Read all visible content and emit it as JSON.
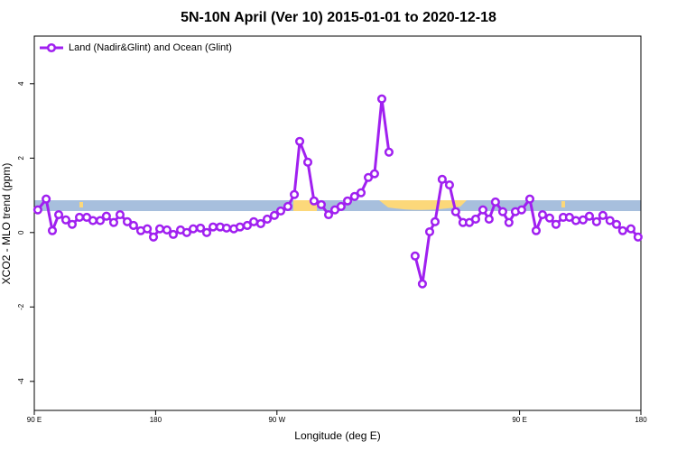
{
  "chart_data": {
    "type": "line",
    "title": "5N-10N April (Ver 10)   2015-01-01 to 2020-12-18",
    "x_label": "Longitude (deg E)",
    "y_label": "XCO2 - MLO trend (ppm)",
    "xlim": [
      90,
      540
    ],
    "ylim": [
      -4.78,
      5.28
    ],
    "xticks": [
      {
        "value": 90,
        "label": "90 E"
      },
      180,
      {
        "value": 270,
        "label": "90 W"
      },
      {
        "value": 450,
        "label": "90 E"
      },
      {
        "value": 540,
        "label": "180"
      }
    ],
    "yticks": [
      -4,
      -2,
      0,
      2,
      4
    ],
    "legend": "top-left",
    "series": [
      {
        "name": "Land (Nadir&Glint) and Ocean (Glint)",
        "color": "#a020f0",
        "x": [
          92.6,
          98.8,
          103.4,
          108.1,
          113.4,
          118.1,
          123.5,
          128.9,
          133.5,
          138.9,
          143.5,
          148.9,
          153.6,
          159.0,
          163.6,
          169.0,
          173.8,
          178.4,
          183.1,
          188.4,
          193.1,
          198.5,
          203.1,
          207.9,
          213.3,
          217.9,
          222.6,
          227.9,
          232.6,
          238.0,
          242.6,
          248.0,
          252.8,
          258.0,
          262.8,
          268.1,
          272.8,
          278.1,
          282.9,
          286.9,
          292.9,
          297.5,
          302.9,
          308.3,
          313.0,
          317.6,
          322.4,
          327.6,
          332.4,
          337.8,
          342.4,
          347.8,
          353.1,
          365,
          372.5,
          377.9,
          383.3,
          387.3,
          392.6,
          398.0,
          402.6,
          408.0,
          412.8,
          417.4,
          422.8,
          427.4,
          432.1,
          437.5,
          442.1,
          446.9,
          451.5,
          457.6,
          462.3,
          467.0,
          472.3,
          477.0,
          482.4,
          487.0,
          491.8,
          497.1,
          501.8,
          507.1,
          511.8,
          517.1,
          521.9,
          526.5,
          532.6,
          537.9
        ],
        "values": [
          0.61,
          0.9,
          0.05,
          0.48,
          0.34,
          0.22,
          0.41,
          0.41,
          0.32,
          0.32,
          0.44,
          0.27,
          0.48,
          0.29,
          0.19,
          0.05,
          0.1,
          -0.12,
          0.1,
          0.07,
          -0.05,
          0.07,
          0,
          0.1,
          0.12,
          0,
          0.15,
          0.15,
          0.12,
          0.1,
          0.15,
          0.19,
          0.29,
          0.24,
          0.36,
          0.46,
          0.58,
          0.7,
          1.02,
          2.45,
          1.89,
          0.85,
          0.75,
          0.48,
          0.61,
          0.7,
          0.85,
          0.97,
          1.07,
          1.48,
          1.58,
          3.59,
          2.16,
          null,
          -0.63,
          -1.38,
          0.02,
          0.29,
          1.43,
          1.28,
          0.56,
          0.27,
          0.27,
          0.36,
          0.61,
          0.36,
          0.82,
          0.56,
          0.27,
          0.56,
          0.61,
          0.9,
          0.05,
          0.48,
          0.39,
          0.22,
          0.41,
          0.41,
          0.32,
          0.34,
          0.44,
          0.29,
          0.46,
          0.32,
          0.22,
          0.05,
          0.1,
          -0.12
        ]
      }
    ]
  }
}
